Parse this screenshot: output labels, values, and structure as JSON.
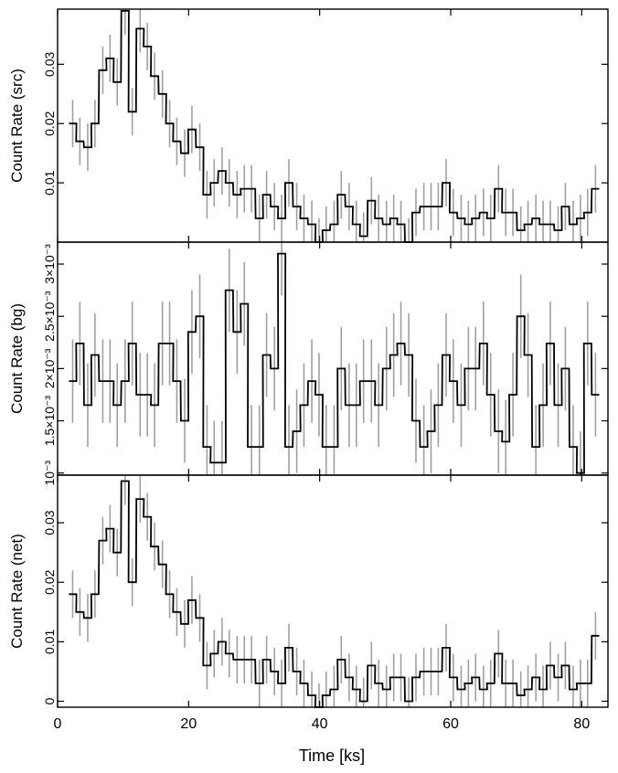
{
  "chart_data": {
    "type": "line",
    "style": "histogram-step-with-error-bars",
    "shared_x": {
      "label": "Time [ks]",
      "lim": [
        0,
        84
      ],
      "ticks": [
        0,
        20,
        40,
        60,
        80
      ],
      "tick_labels": [
        "0",
        "20",
        "40",
        "60",
        "80"
      ]
    },
    "bin_width": 1.14,
    "colors": {
      "line": "#000000",
      "error_bar": "#a0a0a0",
      "frame": "#000000"
    },
    "panels": [
      {
        "key": "src",
        "ylabel": "Count Rate (src)",
        "ylim": [
          0.0,
          0.0393
        ],
        "yticks": [
          0.01,
          0.02,
          0.03
        ],
        "ytick_labels": [
          "0.01",
          "0.02",
          "0.03"
        ],
        "series": [
          {
            "x": [
              2.3,
              3.4,
              4.6,
              5.7,
              6.9,
              8.0,
              9.1,
              10.3,
              11.4,
              12.6,
              13.7,
              14.8,
              16.0,
              17.1,
              18.2,
              19.4,
              20.5,
              21.7,
              22.8,
              23.9,
              25.1,
              26.2,
              27.4,
              28.5,
              29.6,
              30.8,
              31.9,
              33.1,
              34.2,
              35.3,
              36.5,
              37.6,
              38.8,
              39.9,
              41.0,
              42.2,
              43.3,
              44.5,
              45.6,
              46.7,
              47.9,
              49.0,
              50.2,
              51.3,
              52.4,
              53.6,
              54.7,
              55.9,
              57.0,
              58.1,
              59.3,
              60.4,
              61.6,
              62.7,
              63.8,
              65.0,
              66.1,
              67.3,
              68.4,
              69.5,
              70.7,
              71.8,
              73.0,
              74.1,
              75.2,
              76.4,
              77.5,
              78.7,
              79.8,
              80.9,
              82.1
            ],
            "y": [
              0.02,
              0.017,
              0.016,
              0.02,
              0.029,
              0.031,
              0.027,
              0.039,
              0.022,
              0.036,
              0.033,
              0.028,
              0.025,
              0.02,
              0.017,
              0.015,
              0.019,
              0.016,
              0.008,
              0.01,
              0.012,
              0.01,
              0.008,
              0.009,
              0.009,
              0.004,
              0.008,
              0.006,
              0.004,
              0.01,
              0.006,
              0.004,
              0.003,
              0.0,
              0.002,
              0.003,
              0.008,
              0.006,
              0.003,
              0.001,
              0.007,
              0.004,
              0.003,
              0.004,
              0.003,
              0.0,
              0.005,
              0.006,
              0.006,
              0.006,
              0.01,
              0.005,
              0.004,
              0.003,
              0.004,
              0.005,
              0.004,
              0.009,
              0.005,
              0.005,
              0.002,
              0.003,
              0.004,
              0.003,
              0.003,
              0.002,
              0.006,
              0.003,
              0.004,
              0.005,
              0.009
            ],
            "err": [
              0.004,
              0.004,
              0.004,
              0.004,
              0.004,
              0.004,
              0.004,
              0.004,
              0.004,
              0.004,
              0.004,
              0.004,
              0.004,
              0.004,
              0.004,
              0.004,
              0.004,
              0.004,
              0.004,
              0.004,
              0.004,
              0.004,
              0.004,
              0.004,
              0.004,
              0.004,
              0.004,
              0.004,
              0.004,
              0.004,
              0.004,
              0.004,
              0.004,
              0.004,
              0.004,
              0.004,
              0.004,
              0.004,
              0.004,
              0.004,
              0.004,
              0.004,
              0.004,
              0.004,
              0.004,
              0.004,
              0.004,
              0.004,
              0.004,
              0.004,
              0.004,
              0.004,
              0.004,
              0.004,
              0.004,
              0.004,
              0.004,
              0.004,
              0.004,
              0.004,
              0.004,
              0.004,
              0.004,
              0.004,
              0.004,
              0.004,
              0.004,
              0.004,
              0.004,
              0.004,
              0.004
            ]
          }
        ]
      },
      {
        "key": "bg",
        "ylabel": "Count Rate (bg)",
        "ylim": [
          0.00098,
          0.00321
        ],
        "yticks": [
          0.001,
          0.0015,
          0.002,
          0.0025,
          0.003
        ],
        "ytick_labels": [
          "10⁻³",
          "1.5×10⁻³",
          "2×10⁻³",
          "2.5×10⁻³",
          "3×10⁻³"
        ],
        "series": [
          {
            "x": [
              2.3,
              3.4,
              4.6,
              5.7,
              6.9,
              8.0,
              9.1,
              10.3,
              11.4,
              12.6,
              13.7,
              14.8,
              16.0,
              17.1,
              18.2,
              19.4,
              20.5,
              21.7,
              22.8,
              23.9,
              25.1,
              26.2,
              27.4,
              28.5,
              29.6,
              30.8,
              31.9,
              33.1,
              34.2,
              35.3,
              36.5,
              37.6,
              38.8,
              39.9,
              41.0,
              42.2,
              43.3,
              44.5,
              45.6,
              46.7,
              47.9,
              49.0,
              50.2,
              51.3,
              52.4,
              53.6,
              54.7,
              55.9,
              57.0,
              58.1,
              59.3,
              60.4,
              61.6,
              62.7,
              63.8,
              65.0,
              66.1,
              67.3,
              68.4,
              69.5,
              70.7,
              71.8,
              73.0,
              74.1,
              75.2,
              76.4,
              77.5,
              78.7,
              79.8,
              80.9,
              82.1
            ],
            "y": [
              0.00188,
              0.00224,
              0.00165,
              0.00213,
              0.00188,
              0.00188,
              0.00165,
              0.00188,
              0.00224,
              0.00175,
              0.00175,
              0.00165,
              0.00224,
              0.00224,
              0.00188,
              0.0015,
              0.00235,
              0.0025,
              0.00125,
              0.0011,
              0.0011,
              0.00275,
              0.00235,
              0.00262,
              0.00125,
              0.00125,
              0.00213,
              0.002,
              0.0031,
              0.00125,
              0.0014,
              0.00165,
              0.00188,
              0.00175,
              0.00125,
              0.00125,
              0.002,
              0.00165,
              0.00165,
              0.00188,
              0.00188,
              0.00165,
              0.002,
              0.00213,
              0.00224,
              0.00213,
              0.0015,
              0.00125,
              0.0014,
              0.00165,
              0.00213,
              0.00188,
              0.00165,
              0.002,
              0.002,
              0.00224,
              0.00175,
              0.0014,
              0.0013,
              0.00175,
              0.0025,
              0.00213,
              0.00125,
              0.00165,
              0.00224,
              0.00165,
              0.002,
              0.00125,
              0.001,
              0.00224,
              0.00175
            ],
            "err": [
              0.0004,
              0.0004,
              0.0004,
              0.0004,
              0.0004,
              0.0004,
              0.0004,
              0.0004,
              0.0004,
              0.0004,
              0.0004,
              0.0004,
              0.0004,
              0.0004,
              0.0004,
              0.0004,
              0.0004,
              0.0004,
              0.0004,
              0.0004,
              0.0004,
              0.0004,
              0.0004,
              0.0004,
              0.0004,
              0.0004,
              0.0004,
              0.0004,
              0.0004,
              0.0004,
              0.0004,
              0.0004,
              0.0004,
              0.0004,
              0.0004,
              0.0004,
              0.0004,
              0.0004,
              0.0004,
              0.0004,
              0.0004,
              0.0004,
              0.0004,
              0.0004,
              0.0004,
              0.0004,
              0.0004,
              0.0004,
              0.0004,
              0.0004,
              0.0004,
              0.0004,
              0.0004,
              0.0004,
              0.0004,
              0.0004,
              0.0004,
              0.0004,
              0.0004,
              0.0004,
              0.0004,
              0.0004,
              0.0004,
              0.0004,
              0.0004,
              0.0004,
              0.0004,
              0.0004,
              0.0004,
              0.0004,
              0.0004
            ]
          }
        ]
      },
      {
        "key": "net",
        "ylabel": "Count Rate (net)",
        "ylim": [
          -0.001,
          0.038
        ],
        "yticks": [
          0,
          0.01,
          0.02,
          0.03
        ],
        "ytick_labels": [
          "0",
          "0.01",
          "0.02",
          "0.03"
        ],
        "series": [
          {
            "x": [
              2.3,
              3.4,
              4.6,
              5.7,
              6.9,
              8.0,
              9.1,
              10.3,
              11.4,
              12.6,
              13.7,
              14.8,
              16.0,
              17.1,
              18.2,
              19.4,
              20.5,
              21.7,
              22.8,
              23.9,
              25.1,
              26.2,
              27.4,
              28.5,
              29.6,
              30.8,
              31.9,
              33.1,
              34.2,
              35.3,
              36.5,
              37.6,
              38.8,
              39.9,
              41.0,
              42.2,
              43.3,
              44.5,
              45.6,
              46.7,
              47.9,
              49.0,
              50.2,
              51.3,
              52.4,
              53.6,
              54.7,
              55.9,
              57.0,
              58.1,
              59.3,
              60.4,
              61.6,
              62.7,
              63.8,
              65.0,
              66.1,
              67.3,
              68.4,
              69.5,
              70.7,
              71.8,
              73.0,
              74.1,
              75.2,
              76.4,
              77.5,
              78.7,
              79.8,
              80.9,
              82.1
            ],
            "y": [
              0.018,
              0.015,
              0.014,
              0.018,
              0.027,
              0.029,
              0.025,
              0.037,
              0.02,
              0.034,
              0.031,
              0.026,
              0.023,
              0.018,
              0.015,
              0.013,
              0.017,
              0.014,
              0.006,
              0.008,
              0.01,
              0.008,
              0.007,
              0.007,
              0.007,
              0.003,
              0.007,
              0.005,
              0.003,
              0.009,
              0.005,
              0.003,
              0.001,
              -0.001,
              0.001,
              0.002,
              0.007,
              0.004,
              0.002,
              0.0,
              0.006,
              0.003,
              0.002,
              0.004,
              0.004,
              0.0,
              0.004,
              0.005,
              0.005,
              0.005,
              0.009,
              0.004,
              0.002,
              0.003,
              0.004,
              0.002,
              0.003,
              0.008,
              0.003,
              0.003,
              0.001,
              0.002,
              0.004,
              0.002,
              0.006,
              0.004,
              0.006,
              0.002,
              0.003,
              0.003,
              0.011
            ],
            "err": [
              0.004,
              0.004,
              0.004,
              0.004,
              0.004,
              0.004,
              0.004,
              0.004,
              0.004,
              0.004,
              0.004,
              0.004,
              0.004,
              0.004,
              0.004,
              0.004,
              0.004,
              0.004,
              0.004,
              0.004,
              0.004,
              0.004,
              0.004,
              0.004,
              0.004,
              0.004,
              0.004,
              0.004,
              0.004,
              0.004,
              0.004,
              0.004,
              0.004,
              0.004,
              0.004,
              0.004,
              0.004,
              0.004,
              0.004,
              0.004,
              0.004,
              0.004,
              0.004,
              0.004,
              0.004,
              0.004,
              0.004,
              0.004,
              0.004,
              0.004,
              0.004,
              0.004,
              0.004,
              0.004,
              0.004,
              0.004,
              0.004,
              0.004,
              0.004,
              0.004,
              0.004,
              0.004,
              0.004,
              0.004,
              0.004,
              0.004,
              0.004,
              0.004,
              0.004,
              0.004,
              0.004
            ]
          }
        ]
      }
    ]
  }
}
